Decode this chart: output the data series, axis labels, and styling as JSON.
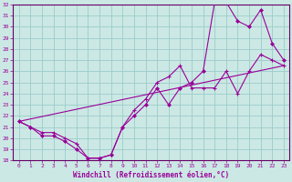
{
  "xlabel": "Windchill (Refroidissement éolien,°C)",
  "bg_color": "#cce8e4",
  "grid_color": "#99cccc",
  "line_color": "#990099",
  "spine_color": "#660066",
  "xlim": [
    -0.5,
    23.5
  ],
  "ylim": [
    18,
    32
  ],
  "xticks": [
    0,
    1,
    2,
    3,
    4,
    5,
    6,
    7,
    8,
    9,
    10,
    11,
    12,
    13,
    14,
    15,
    16,
    17,
    18,
    19,
    20,
    21,
    22,
    23
  ],
  "yticks": [
    18,
    19,
    20,
    21,
    22,
    23,
    24,
    25,
    26,
    27,
    28,
    29,
    30,
    31,
    32
  ],
  "line1_x": [
    0,
    1,
    2,
    3,
    4,
    5,
    6,
    7,
    8,
    9,
    10,
    11,
    12,
    13,
    14,
    15,
    16,
    17,
    18,
    19,
    20,
    21,
    22,
    23
  ],
  "line1_y": [
    21.5,
    21.0,
    20.5,
    20.5,
    20.0,
    19.5,
    18.2,
    18.2,
    18.5,
    21.0,
    22.5,
    23.5,
    25.0,
    25.5,
    26.5,
    24.5,
    24.5,
    24.5,
    26.0,
    24.0,
    26.0,
    27.5,
    27.0,
    26.5
  ],
  "line2_x": [
    0,
    1,
    2,
    3,
    4,
    5,
    6,
    7,
    8,
    9,
    10,
    11,
    12,
    13,
    14,
    15,
    16,
    17,
    18,
    19,
    20,
    21,
    22,
    23
  ],
  "line2_y": [
    21.5,
    21.0,
    20.2,
    20.2,
    19.7,
    19.0,
    18.2,
    18.2,
    18.5,
    21.0,
    22.0,
    23.0,
    24.5,
    23.0,
    24.5,
    25.0,
    26.0,
    32.2,
    32.2,
    30.5,
    30.0,
    31.5,
    28.5,
    27.0
  ],
  "line3_x": [
    0,
    23
  ],
  "line3_y": [
    21.5,
    26.5
  ]
}
